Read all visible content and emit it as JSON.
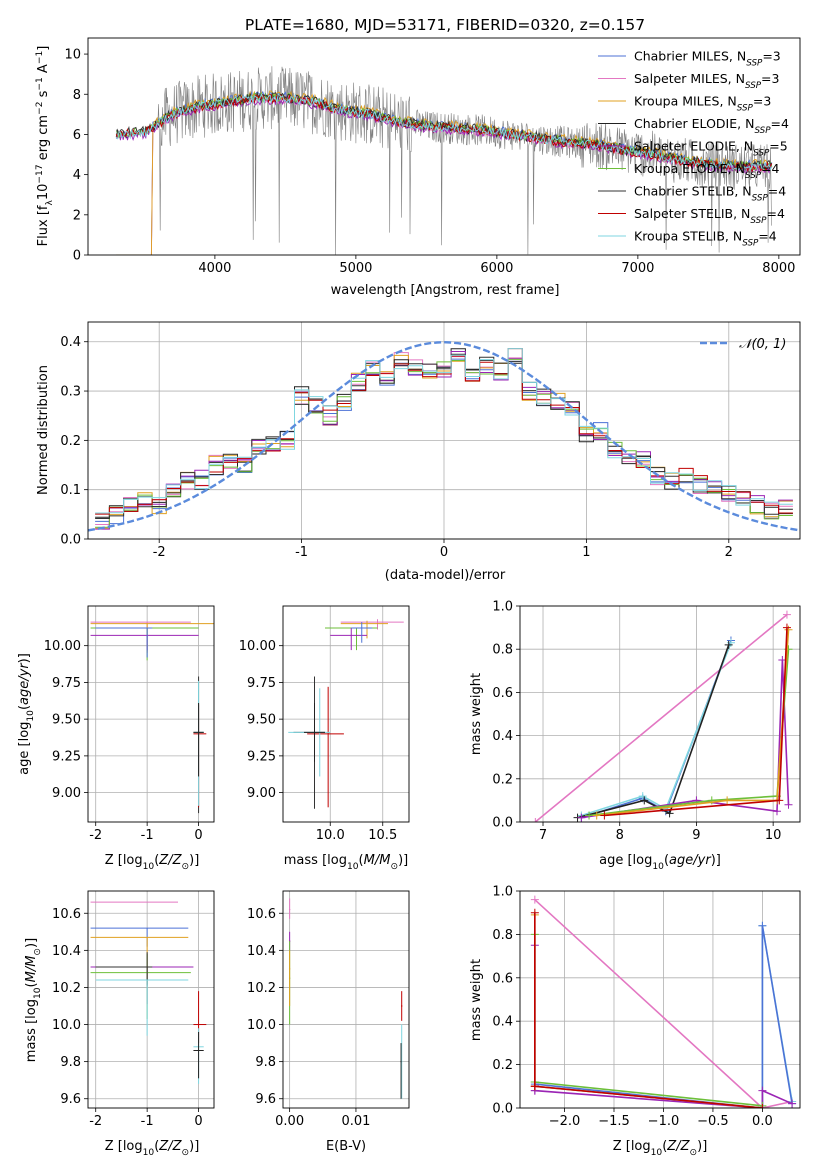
{
  "figure_title": "PLATE=1680, MJD=53171, FIBERID=0320, z=0.157",
  "series_colors": {
    "Chabrier MILES": "#4c72d6",
    "Salpeter MILES": "#e377c2",
    "Kroupa MILES": "#e0a020",
    "Chabrier ELODIE": "#222222",
    "Salpeter ELODIE": "#9b25b5",
    "Kroupa ELODIE": "#6dbf3a",
    "Chabrier STELIB": "#333333",
    "Salpeter STELIB": "#c00000",
    "Kroupa STELIB": "#7fd6e0",
    "data": "#7f7f7f",
    "gaussian": "#5b8bdc"
  },
  "chart_data": [
    {
      "id": "spectrum",
      "type": "line",
      "title": "PLATE=1680, MJD=53171, FIBERID=0320, z=0.157",
      "xlabel": "wavelength [Angstrom, rest frame]",
      "ylabel": "Flux [f_λ 10^-17 erg cm^-2 s^-1 A^-1]",
      "xlim": [
        3100,
        8150
      ],
      "ylim": [
        0,
        10.8
      ],
      "xticks": [
        4000,
        5000,
        6000,
        7000,
        8000
      ],
      "yticks": [
        0,
        2,
        4,
        6,
        8,
        10
      ],
      "grid": false,
      "legend_position": "top-right",
      "legend": [
        {
          "name": "Chabrier MILES",
          "nssp": 3
        },
        {
          "name": "Salpeter MILES",
          "nssp": 3
        },
        {
          "name": "Kroupa MILES",
          "nssp": 3
        },
        {
          "name": "Chabrier ELODIE",
          "nssp": 4
        },
        {
          "name": "Salpeter ELODIE",
          "nssp": 5
        },
        {
          "name": "Kroupa ELODIE",
          "nssp": 4
        },
        {
          "name": "Chabrier STELIB",
          "nssp": 4
        },
        {
          "name": "Salpeter STELIB",
          "nssp": 4
        },
        {
          "name": "Kroupa STELIB",
          "nssp": 4
        }
      ],
      "continuum": {
        "x": [
          3300,
          3500,
          3700,
          3900,
          4100,
          4300,
          4500,
          4700,
          4900,
          5100,
          5300,
          5500,
          5700,
          5900,
          6100,
          6300,
          6500,
          6700,
          6900,
          7100,
          7300,
          7500,
          7700,
          7900
        ],
        "y": [
          6.0,
          6.1,
          7.0,
          7.4,
          7.6,
          7.8,
          7.8,
          7.6,
          7.2,
          7.0,
          6.6,
          6.4,
          6.3,
          6.2,
          6.0,
          5.8,
          5.6,
          5.5,
          5.2,
          5.0,
          4.7,
          4.5,
          4.4,
          4.4
        ]
      }
    },
    {
      "id": "residuals",
      "type": "line",
      "xlabel": "(data-model)/error",
      "ylabel": "Normed distribution",
      "xlim": [
        -2.5,
        2.5
      ],
      "ylim": [
        0,
        0.44
      ],
      "xticks": [
        -2,
        -1,
        0,
        1,
        2
      ],
      "yticks": [
        0.0,
        0.1,
        0.2,
        0.3,
        0.4
      ],
      "grid": true,
      "legend_position": "top-right",
      "gaussian_label": "𝒩(0, 1)",
      "hist_centers": [
        -2.4,
        -2.3,
        -2.2,
        -2.1,
        -2.0,
        -1.9,
        -1.8,
        -1.7,
        -1.6,
        -1.5,
        -1.4,
        -1.3,
        -1.2,
        -1.1,
        -1.0,
        -0.9,
        -0.8,
        -0.7,
        -0.6,
        -0.5,
        -0.4,
        -0.3,
        -0.2,
        -0.1,
        0.0,
        0.1,
        0.2,
        0.3,
        0.4,
        0.5,
        0.6,
        0.7,
        0.8,
        0.9,
        1.0,
        1.1,
        1.2,
        1.3,
        1.4,
        1.5,
        1.6,
        1.7,
        1.8,
        1.9,
        2.0,
        2.1,
        2.2,
        2.3,
        2.4
      ],
      "hist_values": [
        0.04,
        0.05,
        0.07,
        0.08,
        0.07,
        0.1,
        0.12,
        0.12,
        0.15,
        0.16,
        0.15,
        0.19,
        0.19,
        0.2,
        0.29,
        0.27,
        0.25,
        0.28,
        0.32,
        0.35,
        0.33,
        0.36,
        0.35,
        0.34,
        0.34,
        0.38,
        0.33,
        0.35,
        0.34,
        0.37,
        0.3,
        0.29,
        0.28,
        0.27,
        0.21,
        0.22,
        0.18,
        0.17,
        0.16,
        0.13,
        0.12,
        0.13,
        0.11,
        0.1,
        0.09,
        0.08,
        0.07,
        0.06,
        0.06
      ]
    },
    {
      "id": "age_vs_Z",
      "type": "scatter",
      "xlabel": "Z [log10(Z/Z⊙)]",
      "ylabel": "age  [log10(age/yr)]",
      "xlim": [
        -2.15,
        0.3
      ],
      "ylim": [
        8.8,
        10.27
      ],
      "xticks": [
        -2,
        -1,
        0
      ],
      "yticks": [
        9.0,
        9.25,
        9.5,
        9.75,
        10.0
      ],
      "grid": true
    },
    {
      "id": "age_vs_mass",
      "type": "scatter",
      "xlabel": "mass [log10(M/M⊙)]",
      "xlim": [
        9.55,
        10.75
      ],
      "ylim": [
        8.8,
        10.27
      ],
      "xticks": [
        10.0,
        10.5
      ],
      "yticks": [
        9.0,
        9.25,
        9.5,
        9.75,
        10.0
      ],
      "grid": true
    },
    {
      "id": "weight_vs_age",
      "type": "line",
      "xlabel": "age  [log10(age/yr)]",
      "ylabel": "mass weight",
      "xlim": [
        6.7,
        10.35
      ],
      "ylim": [
        0,
        1.0
      ],
      "xticks": [
        7,
        8,
        9,
        10
      ],
      "yticks": [
        0.0,
        0.2,
        0.4,
        0.6,
        0.8,
        1.0
      ],
      "grid": true
    },
    {
      "id": "mass_vs_Z",
      "type": "scatter",
      "xlabel": "Z [log10(Z/Z⊙)]",
      "ylabel": "mass [log10(M/M⊙)]",
      "xlim": [
        -2.15,
        0.3
      ],
      "ylim": [
        9.55,
        10.72
      ],
      "xticks": [
        -2,
        -1,
        0
      ],
      "yticks": [
        9.6,
        9.8,
        10.0,
        10.2,
        10.4,
        10.6
      ],
      "grid": true
    },
    {
      "id": "mass_vs_ebv",
      "type": "scatter",
      "xlabel": "E(B-V)",
      "xlim": [
        -0.001,
        0.018
      ],
      "ylim": [
        9.55,
        10.72
      ],
      "xticks": [
        0.0,
        0.01
      ],
      "yticks": [
        9.6,
        9.8,
        10.0,
        10.2,
        10.4,
        10.6
      ],
      "grid": true
    },
    {
      "id": "weight_vs_Z",
      "type": "line",
      "xlabel": "Z [log10(Z/Z⊙)]",
      "ylabel": "mass weight",
      "xlim": [
        -2.45,
        0.38
      ],
      "ylim": [
        0,
        1.0
      ],
      "xticks": [
        -2.0,
        -1.5,
        -1.0,
        -0.5,
        0.0
      ],
      "yticks": [
        0.0,
        0.2,
        0.4,
        0.6,
        0.8,
        1.0
      ],
      "grid": true
    }
  ]
}
